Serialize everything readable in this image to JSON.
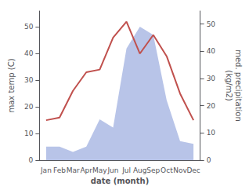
{
  "chart_data": {
    "type": "line",
    "xlabel": "date (month)",
    "ylabel": "max temp (C)",
    "y2label": "med. precipitation\n(kg/m2)",
    "categories": [
      "Jan",
      "Feb",
      "Mar",
      "Apr",
      "May",
      "Jun",
      "Jul",
      "Aug",
      "Sep",
      "Oct",
      "Nov",
      "Dec"
    ],
    "series": [
      {
        "type": "line",
        "color": "#c0504d",
        "values": [
          15,
          16,
          26,
          33,
          34,
          46,
          52,
          40,
          47,
          39,
          25,
          15
        ]
      },
      {
        "type": "area",
        "color": "#b8c4e8",
        "axis": "y2",
        "values": [
          5,
          5,
          3,
          5,
          15,
          12,
          41,
          49,
          46,
          22,
          7,
          6
        ]
      }
    ],
    "ylim": [
      0,
      56
    ],
    "yticks": [
      0,
      10,
      20,
      30,
      40,
      50
    ],
    "y2lim": [
      0,
      54.8
    ],
    "y2ticks": [
      0,
      10,
      20,
      30,
      40,
      50
    ],
    "grid": false
  }
}
